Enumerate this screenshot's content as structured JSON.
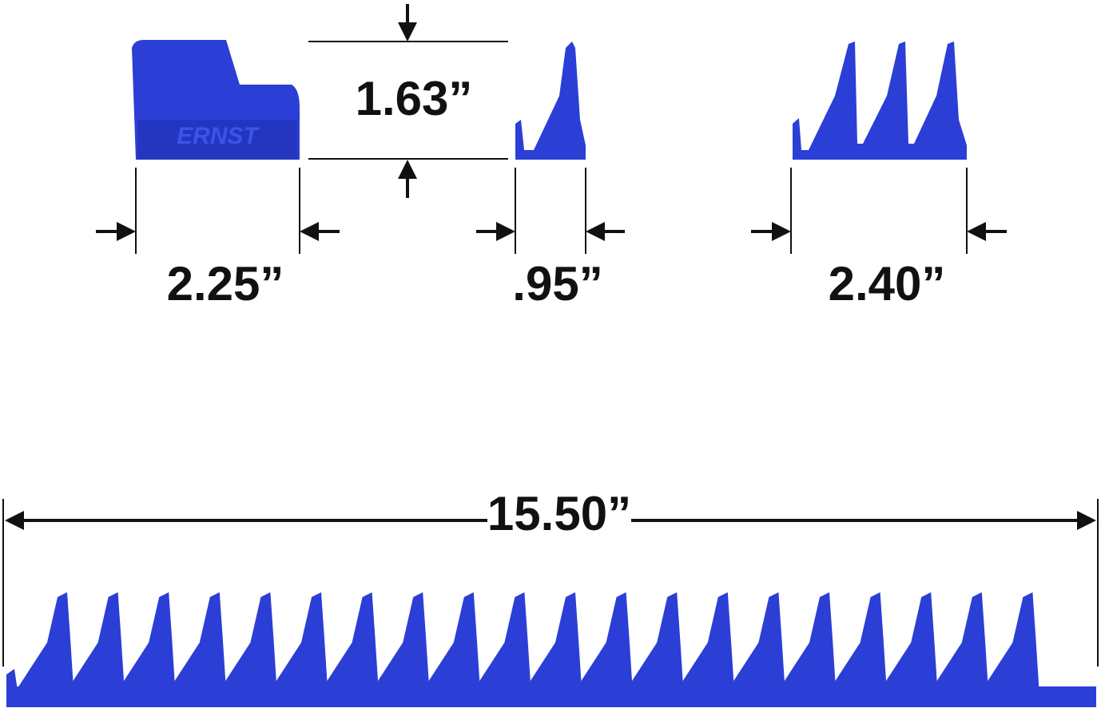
{
  "dimensions": {
    "height": "1.63”",
    "end_width": "2.25”",
    "tooth_width": ".95”",
    "triple_width": "2.40”",
    "rail_length": "15.50”"
  },
  "brand": "ERNST"
}
